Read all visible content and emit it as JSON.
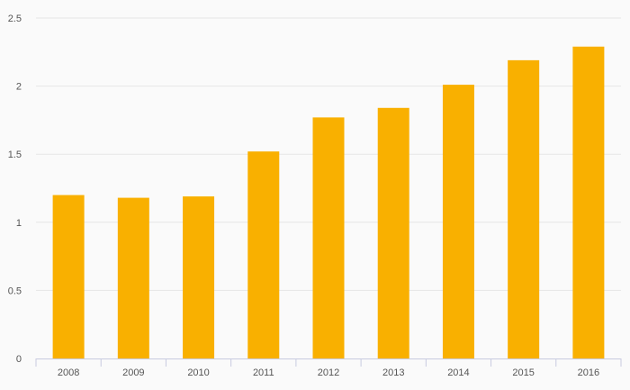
{
  "chart_data": {
    "type": "bar",
    "title": "",
    "xlabel": "",
    "ylabel": "",
    "categories": [
      "2008",
      "2009",
      "2010",
      "2011",
      "2012",
      "2013",
      "2014",
      "2015",
      "2016"
    ],
    "values": [
      1.2,
      1.18,
      1.19,
      1.52,
      1.77,
      1.84,
      2.01,
      2.19,
      2.29
    ],
    "ylim": [
      0,
      2.5
    ],
    "yticks": [
      "0",
      "0.5",
      "1",
      "1.5",
      "2",
      "2.5"
    ],
    "grid": "horizontal",
    "legend": "none",
    "colors": {
      "bar": "#F9B000",
      "grid": "#e6e6e6",
      "axis": "#c8cbe0",
      "tick_text": "#555555",
      "background": "#fafafa"
    }
  }
}
